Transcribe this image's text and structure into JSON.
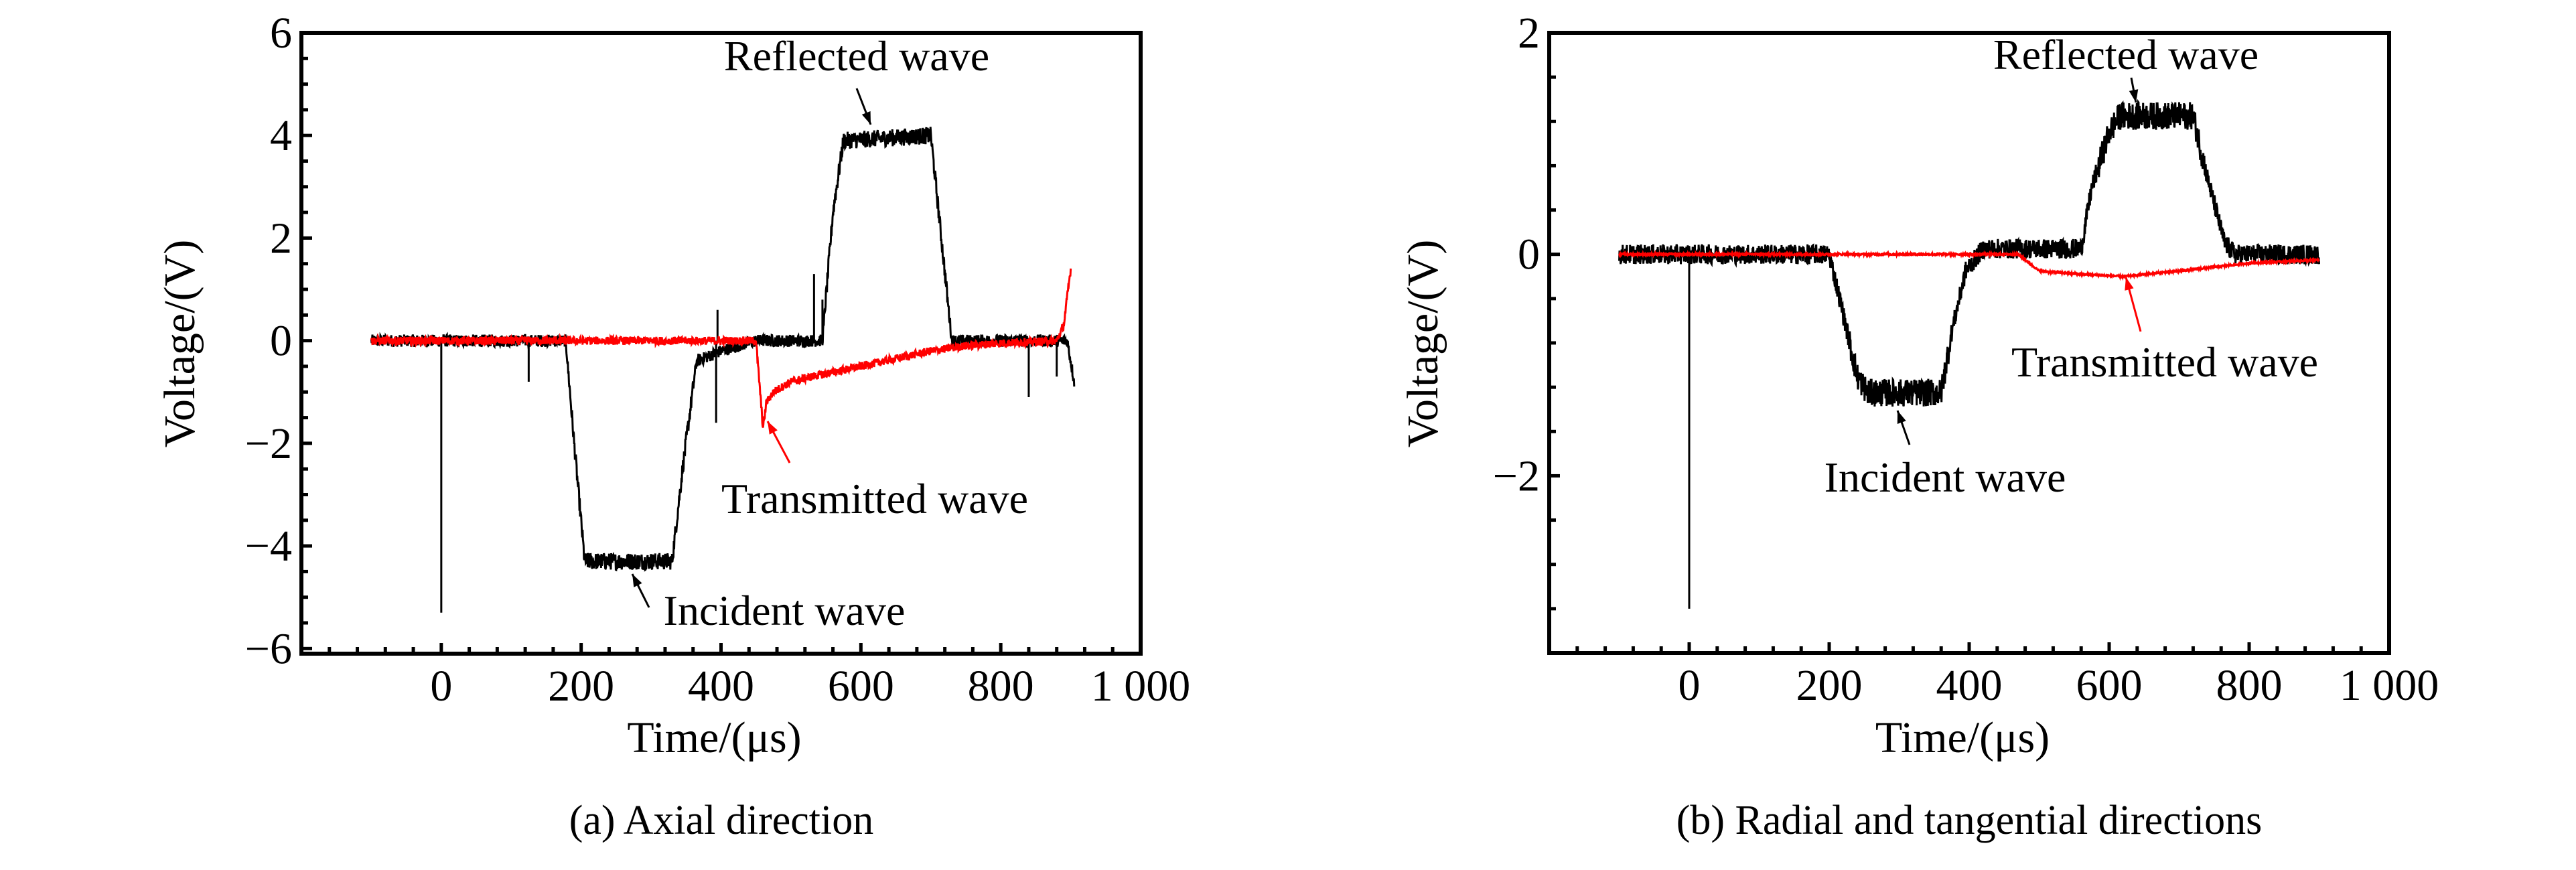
{
  "chart_data": [
    {
      "type": "line",
      "caption": "(a) Axial direction",
      "xlabel": "Time/(μs)",
      "ylabel": "Voltage/(V)",
      "xlim": [
        -200,
        1000
      ],
      "ylim": [
        -6.1,
        6
      ],
      "xticks": [
        0,
        200,
        400,
        600,
        800,
        1000
      ],
      "xtick_labels": [
        "0",
        "200",
        "400",
        "600",
        "800",
        "1 000"
      ],
      "yticks": [
        -6,
        -4,
        -2,
        0,
        2,
        4,
        6
      ],
      "ytick_labels": [
        "−6",
        "−4",
        "−2",
        "0",
        "2",
        "4",
        "6"
      ],
      "grid": false,
      "series": [
        {
          "color": "#000000",
          "noise": 0.12,
          "points": [
            [
              -100,
              0
            ],
            [
              178,
              0
            ],
            [
              190,
              -2
            ],
            [
              205,
              -4.3
            ],
            [
              330,
              -4.3
            ],
            [
              345,
              -2.5
            ],
            [
              365,
              -0.4
            ],
            [
              400,
              -0.2
            ],
            [
              450,
              0
            ],
            [
              545,
              0
            ],
            [
              560,
              2.5
            ],
            [
              575,
              3.9
            ],
            [
              700,
              4.0
            ],
            [
              715,
              2
            ],
            [
              730,
              0
            ],
            [
              895,
              0
            ],
            [
              905,
              -0.8
            ]
          ],
          "spikes": [
            [
              0,
              -5.3
            ],
            [
              125,
              -0.8
            ],
            [
              395,
              0.6
            ],
            [
              393,
              -1.6
            ],
            [
              533,
              1.3
            ],
            [
              545,
              0.8
            ],
            [
              840,
              -1.1
            ],
            [
              880,
              -0.7
            ]
          ]
        },
        {
          "color": "#ff0000",
          "noise": 0.08,
          "points": [
            [
              -100,
              0
            ],
            [
              450,
              0
            ],
            [
              460,
              -1.7
            ],
            [
              465,
              -1.2
            ],
            [
              475,
              -1.0
            ],
            [
              500,
              -0.8
            ],
            [
              530,
              -0.7
            ],
            [
              600,
              -0.5
            ],
            [
              650,
              -0.35
            ],
            [
              700,
              -0.2
            ],
            [
              750,
              -0.1
            ],
            [
              800,
              -0.05
            ],
            [
              880,
              0
            ],
            [
              890,
              0.3
            ],
            [
              900,
              1.4
            ]
          ],
          "spikes": []
        }
      ],
      "annotations": [
        {
          "text": "Reflected wave",
          "color": "#000000"
        },
        {
          "text": "Transmitted wave",
          "color": "#ff0000"
        },
        {
          "text": "Incident wave",
          "color": "#000000"
        }
      ]
    },
    {
      "type": "line",
      "caption": "(b) Radial and tangential directions",
      "xlabel": "Time/(μs)",
      "ylabel": "Voltage/(V)",
      "xlim": [
        -200,
        1000
      ],
      "ylim": [
        -3.6,
        2
      ],
      "xticks": [
        0,
        200,
        400,
        600,
        800,
        1000
      ],
      "xtick_labels": [
        "0",
        "200",
        "400",
        "600",
        "800",
        "1 000"
      ],
      "yticks": [
        -2,
        0,
        2
      ],
      "ytick_labels": [
        "−2",
        "0",
        "2"
      ],
      "grid": false,
      "series": [
        {
          "color": "#000000",
          "noise": 0.09,
          "points": [
            [
              -100,
              0
            ],
            [
              200,
              0
            ],
            [
              215,
              -0.4
            ],
            [
              240,
              -1.1
            ],
            [
              255,
              -1.25
            ],
            [
              360,
              -1.25
            ],
            [
              375,
              -0.7
            ],
            [
              395,
              -0.15
            ],
            [
              420,
              0.05
            ],
            [
              560,
              0.05
            ],
            [
              575,
              0.6
            ],
            [
              600,
              1.1
            ],
            [
              615,
              1.25
            ],
            [
              720,
              1.25
            ],
            [
              740,
              0.7
            ],
            [
              765,
              0.1
            ],
            [
              780,
              0
            ],
            [
              900,
              0
            ]
          ],
          "spikes": [
            [
              0,
              -3.2
            ]
          ]
        },
        {
          "color": "#ff0000",
          "noise": 0.008,
          "points": [
            [
              -100,
              0
            ],
            [
              470,
              0
            ],
            [
              500,
              -0.15
            ],
            [
              560,
              -0.18
            ],
            [
              620,
              -0.2
            ],
            [
              700,
              -0.15
            ],
            [
              800,
              -0.08
            ],
            [
              900,
              -0.05
            ]
          ],
          "spikes": []
        }
      ],
      "annotations": [
        {
          "text": "Reflected wave",
          "color": "#000000"
        },
        {
          "text": "Transmitted wave",
          "color": "#ff0000"
        },
        {
          "text": "Incident wave",
          "color": "#000000"
        }
      ]
    }
  ]
}
